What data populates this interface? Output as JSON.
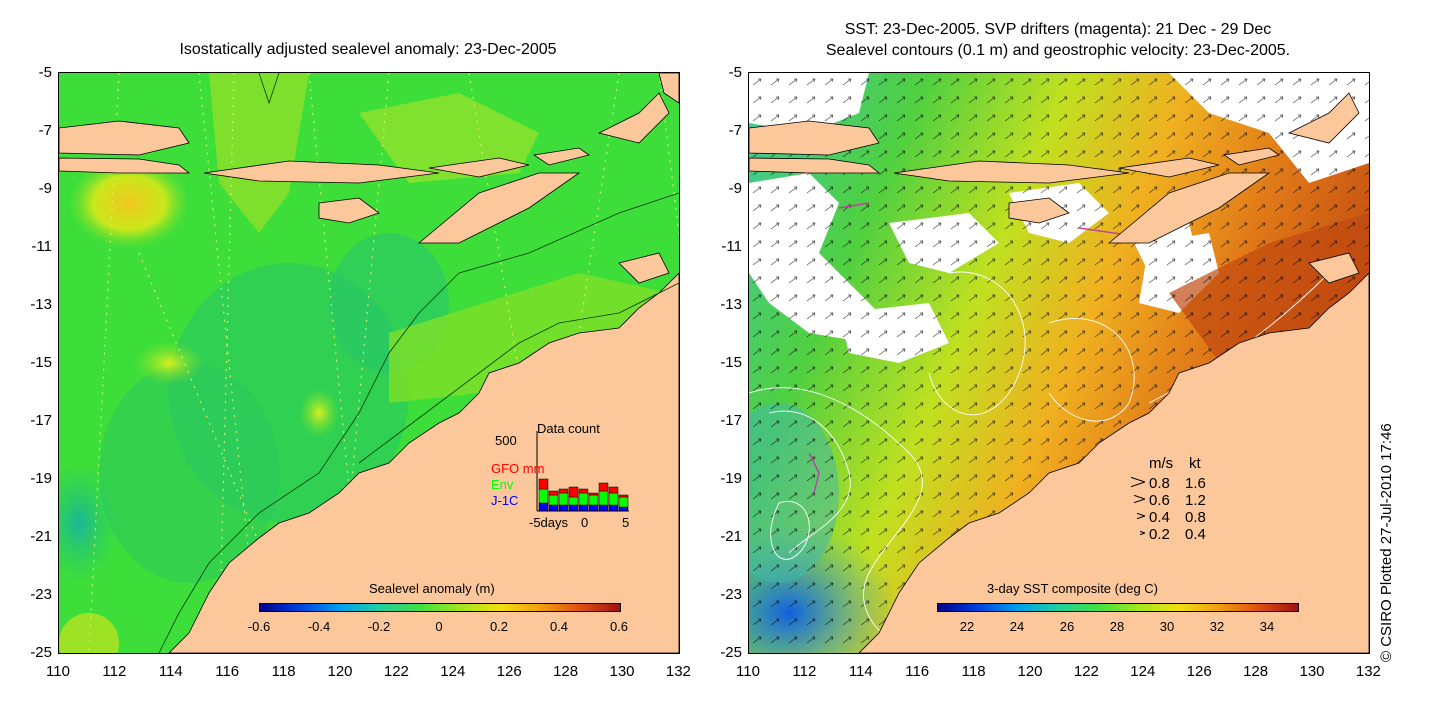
{
  "left_panel": {
    "title": "Isostatically adjusted sealevel anomaly: 23-Dec-2005",
    "y_ticks": [
      "-5",
      "-7",
      "-9",
      "-11",
      "-13",
      "-15",
      "-17",
      "-19",
      "-21",
      "-23",
      "-25"
    ],
    "x_ticks": [
      "110",
      "112",
      "114",
      "116",
      "118",
      "120",
      "122",
      "124",
      "126",
      "128",
      "130",
      "132"
    ],
    "colorbar": {
      "title": "Sealevel anomaly (m)",
      "ticks": [
        "-0.6",
        "-0.4",
        "-0.2",
        "0",
        "0.2",
        "0.4",
        "0.6"
      ]
    },
    "data_count": {
      "title": "Data count",
      "ymax_label": "500",
      "series": [
        {
          "name": "GFO mm",
          "color": "#ff0000"
        },
        {
          "name": "Env",
          "color": "#00ff00"
        },
        {
          "name": "J-1C",
          "color": "#0000ff"
        }
      ],
      "x_labels": [
        "-5days",
        "0",
        "5"
      ]
    }
  },
  "right_panel": {
    "title_line1": "SST: 23-Dec-2005. SVP drifters (magenta): 21 Dec - 29 Dec",
    "title_line2": "Sealevel contours (0.1 m) and geostrophic velocity: 23-Dec-2005.",
    "y_ticks": [
      "-5",
      "-7",
      "-9",
      "-11",
      "-13",
      "-15",
      "-17",
      "-19",
      "-21",
      "-23",
      "-25"
    ],
    "x_ticks": [
      "110",
      "112",
      "114",
      "116",
      "118",
      "120",
      "122",
      "124",
      "126",
      "128",
      "130",
      "132"
    ],
    "colorbar": {
      "title": "3-day SST composite (deg C)",
      "ticks": [
        "22",
        "24",
        "26",
        "28",
        "30",
        "32",
        "34"
      ]
    },
    "velocity_legend": {
      "header_ms": "m/s",
      "header_kt": "kt",
      "rows": [
        {
          "ms": "0.8",
          "kt": "1.6"
        },
        {
          "ms": "0.6",
          "kt": "1.2"
        },
        {
          "ms": "0.4",
          "kt": "0.8"
        },
        {
          "ms": "0.2",
          "kt": "0.4"
        }
      ]
    }
  },
  "credit": "© CSIRO Plotted 27-Jul-2010 17:46",
  "colors": {
    "land": "#fcc89b",
    "ocean_green": "#3ee03a",
    "no_data": "#ffffff"
  }
}
